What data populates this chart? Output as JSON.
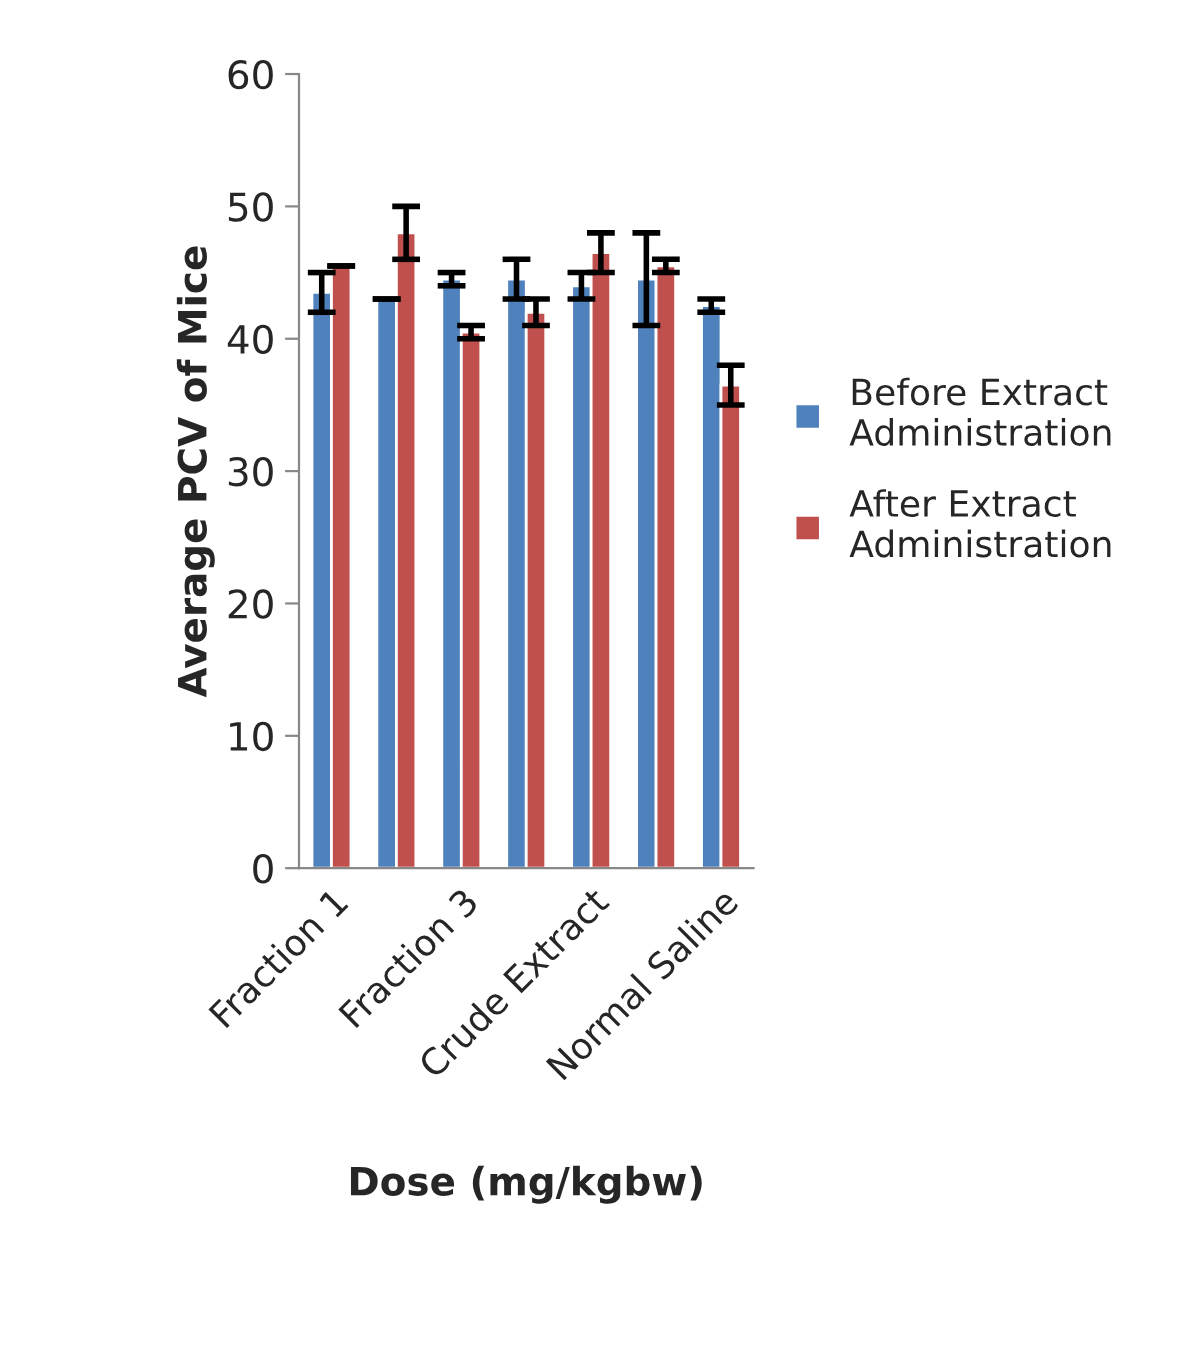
{
  "chart_data": {
    "type": "bar",
    "xlabel": "Dose (mg/kgbw)",
    "ylabel": "Average PCV of Mice",
    "categories": [
      "Fraction 1",
      null,
      "Fraction 3",
      null,
      "Crude Extract",
      null,
      "Normal Saline"
    ],
    "series": [
      {
        "name": "Before Extract Administration",
        "color": "#4f81bd",
        "values": [
          43.5,
          43,
          44.5,
          44.5,
          44,
          44.5,
          42.5
        ],
        "errors": [
          1.5,
          0,
          0.5,
          1.5,
          1,
          3.5,
          0.5
        ]
      },
      {
        "name": "After Extract Administration",
        "color": "#c0504d",
        "values": [
          45.5,
          48,
          40.5,
          42,
          46.5,
          45.5,
          36.5
        ],
        "errors": [
          0,
          2,
          0.5,
          1,
          1.5,
          0.5,
          1.5
        ]
      }
    ],
    "ylim": [
      0,
      60
    ],
    "yticks": [
      0,
      10,
      20,
      30,
      40,
      50,
      60
    ],
    "grid": false,
    "legend": "right"
  }
}
